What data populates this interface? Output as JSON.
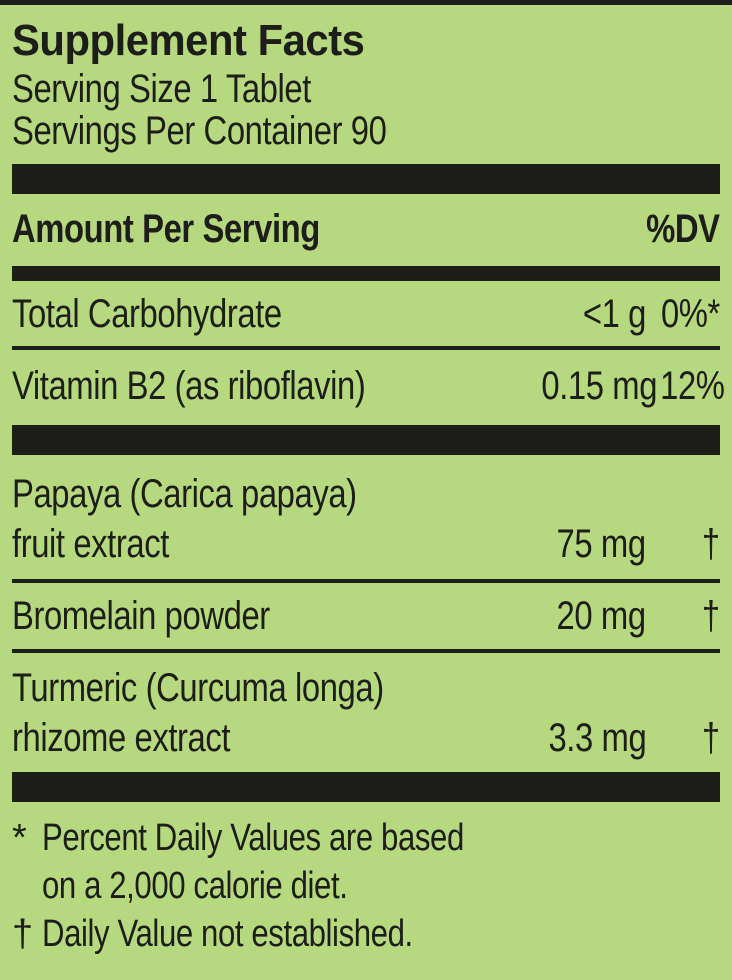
{
  "colors": {
    "background": "#b6d87f",
    "ink": "#1d1d1a"
  },
  "label": {
    "title": "Supplement Facts",
    "serving_size": "Serving Size 1 Tablet",
    "servings_per_container": "Servings Per Container 90",
    "header": {
      "amount_per_serving": "Amount Per Serving",
      "dv": "%DV"
    },
    "rows": [
      {
        "name": "Total Carbohydrate",
        "amount": "<1 g",
        "dv": "0%*"
      },
      {
        "name": "Vitamin B2 (as riboflavin)",
        "amount": "0.15 mg",
        "dv": "12%"
      },
      {
        "name_line1": "Papaya (Carica papaya)",
        "name_line2": "fruit extract",
        "amount": "75 mg",
        "dv": "†"
      },
      {
        "name": "Bromelain powder",
        "amount": "20 mg",
        "dv": "†"
      },
      {
        "name_line1": "Turmeric (Curcuma longa)",
        "name_line2": "rhizome extract",
        "amount": "3.3 mg",
        "dv": "†"
      }
    ],
    "footnotes": {
      "dv_note": {
        "marker": "*",
        "line1": "Percent Daily Values are based",
        "line2": "on a 2,000 calorie diet."
      },
      "dagger_note": {
        "marker": "†",
        "text": "Daily Value not established."
      }
    }
  }
}
